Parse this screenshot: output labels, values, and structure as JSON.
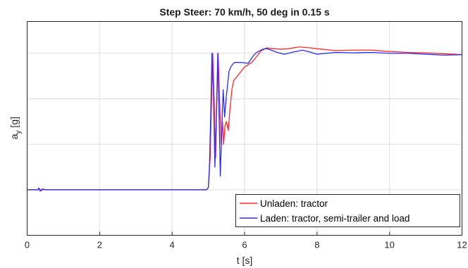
{
  "chart_data": {
    "type": "line",
    "title": "Step Steer: 70 km/h, 50 deg in 0.15 s",
    "xlabel": "t [s]",
    "ylabel": {
      "main": "a",
      "sub": "y",
      "unit": " [g]"
    },
    "xlim": [
      0,
      12
    ],
    "ylim": [
      -0.1,
      0.37
    ],
    "xticks": [
      0,
      2,
      4,
      6,
      8,
      10,
      12
    ],
    "ytick_values": [
      0,
      0.1,
      0.2,
      0.3
    ],
    "grid": true,
    "legend_position": "bottom-right",
    "series": [
      {
        "name": "Unladen: tractor",
        "color": "#ff2a2a",
        "points": [
          [
            0,
            0
          ],
          [
            0.3,
            0
          ],
          [
            0.33,
            0.003
          ],
          [
            0.38,
            -0.002
          ],
          [
            0.45,
            0.001
          ],
          [
            0.5,
            0
          ],
          [
            4.95,
            0
          ],
          [
            5.0,
            0.005
          ],
          [
            5.05,
            0.07
          ],
          [
            5.09,
            0.2
          ],
          [
            5.12,
            0.3
          ],
          [
            5.16,
            0.2
          ],
          [
            5.2,
            0.07
          ],
          [
            5.23,
            0.18
          ],
          [
            5.27,
            0.3
          ],
          [
            5.31,
            0.2
          ],
          [
            5.35,
            0.1
          ],
          [
            5.39,
            0.15
          ],
          [
            5.42,
            0.1
          ],
          [
            5.46,
            0.14
          ],
          [
            5.5,
            0.15
          ],
          [
            5.55,
            0.13
          ],
          [
            5.6,
            0.18
          ],
          [
            5.65,
            0.22
          ],
          [
            5.7,
            0.24
          ],
          [
            5.8,
            0.25
          ],
          [
            5.9,
            0.26
          ],
          [
            6.0,
            0.27
          ],
          [
            6.1,
            0.275
          ],
          [
            6.2,
            0.28
          ],
          [
            6.3,
            0.29
          ],
          [
            6.45,
            0.305
          ],
          [
            6.6,
            0.312
          ],
          [
            6.8,
            0.31
          ],
          [
            7.0,
            0.309
          ],
          [
            7.2,
            0.31
          ],
          [
            7.5,
            0.314
          ],
          [
            7.8,
            0.312
          ],
          [
            8.0,
            0.31
          ],
          [
            8.5,
            0.306
          ],
          [
            9.0,
            0.307
          ],
          [
            9.5,
            0.307
          ],
          [
            10.0,
            0.304
          ],
          [
            10.5,
            0.302
          ],
          [
            11.0,
            0.301
          ],
          [
            11.5,
            0.299
          ],
          [
            12.0,
            0.297
          ]
        ]
      },
      {
        "name": "Laden: tractor, semi-trailer and load",
        "color": "#2a2aff",
        "points": [
          [
            0,
            0
          ],
          [
            0.3,
            0
          ],
          [
            0.32,
            0.004
          ],
          [
            0.36,
            -0.003
          ],
          [
            0.42,
            0.002
          ],
          [
            0.5,
            0
          ],
          [
            4.95,
            0
          ],
          [
            5.0,
            0.005
          ],
          [
            5.03,
            0.05
          ],
          [
            5.07,
            0.18
          ],
          [
            5.1,
            0.3
          ],
          [
            5.14,
            0.22
          ],
          [
            5.18,
            0.05
          ],
          [
            5.22,
            0.15
          ],
          [
            5.26,
            0.3
          ],
          [
            5.3,
            0.15
          ],
          [
            5.33,
            0.03
          ],
          [
            5.37,
            0.13
          ],
          [
            5.41,
            0.22
          ],
          [
            5.45,
            0.16
          ],
          [
            5.49,
            0.2
          ],
          [
            5.53,
            0.23
          ],
          [
            5.57,
            0.26
          ],
          [
            5.62,
            0.27
          ],
          [
            5.66,
            0.275
          ],
          [
            5.72,
            0.28
          ],
          [
            5.8,
            0.28
          ],
          [
            5.9,
            0.28
          ],
          [
            6.0,
            0.279
          ],
          [
            6.1,
            0.278
          ],
          [
            6.2,
            0.29
          ],
          [
            6.3,
            0.3
          ],
          [
            6.4,
            0.305
          ],
          [
            6.5,
            0.309
          ],
          [
            6.6,
            0.31
          ],
          [
            6.7,
            0.308
          ],
          [
            6.9,
            0.302
          ],
          [
            7.1,
            0.298
          ],
          [
            7.3,
            0.302
          ],
          [
            7.6,
            0.307
          ],
          [
            7.8,
            0.303
          ],
          [
            8.0,
            0.298
          ],
          [
            8.5,
            0.302
          ],
          [
            9.0,
            0.301
          ],
          [
            9.5,
            0.302
          ],
          [
            10.0,
            0.3
          ],
          [
            10.5,
            0.3
          ],
          [
            11.0,
            0.298
          ],
          [
            11.5,
            0.296
          ],
          [
            12.0,
            0.297
          ]
        ]
      }
    ]
  }
}
